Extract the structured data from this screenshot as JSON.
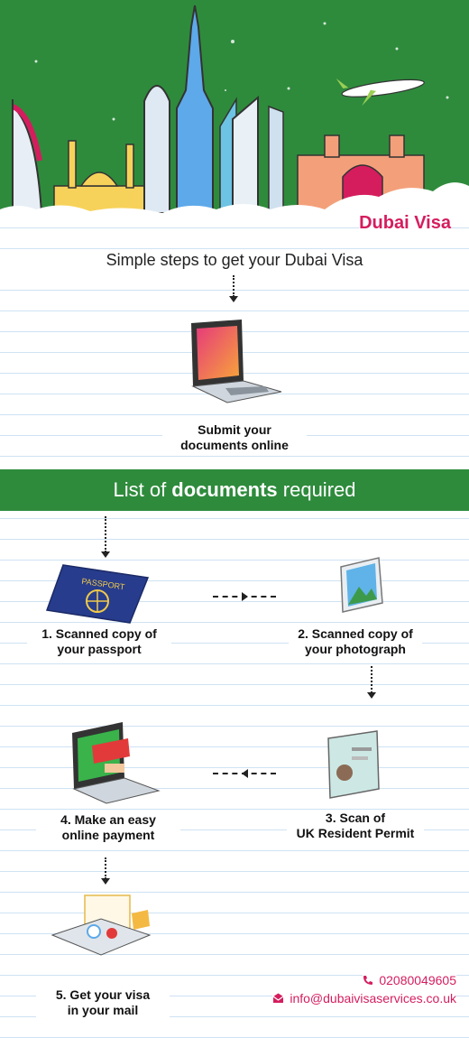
{
  "header": {
    "brand": "Dubai Visa"
  },
  "intro": {
    "title": "Simple steps to get your Dubai Visa",
    "step_caption_line1": "Submit your",
    "step_caption_line2": "documents online"
  },
  "band": {
    "prefix": "List of ",
    "bold": "documents",
    "suffix": " required"
  },
  "steps": [
    {
      "line1": "1. Scanned copy of",
      "line2": "your passport"
    },
    {
      "line1": "2. Scanned copy of",
      "line2": "your photograph"
    },
    {
      "line1": "3. Scan of",
      "line2": "UK Resident Permit"
    },
    {
      "line1": "4. Make an easy",
      "line2": "online payment"
    },
    {
      "line1": "5. Get your visa",
      "line2": "in your mail"
    }
  ],
  "passport_text": "PASSPORT",
  "contact": {
    "phone": "02080049605",
    "email": "info@dubaivisaservices.co.uk"
  },
  "colors": {
    "green": "#2e8b3c",
    "accent": "#d51d5e"
  }
}
